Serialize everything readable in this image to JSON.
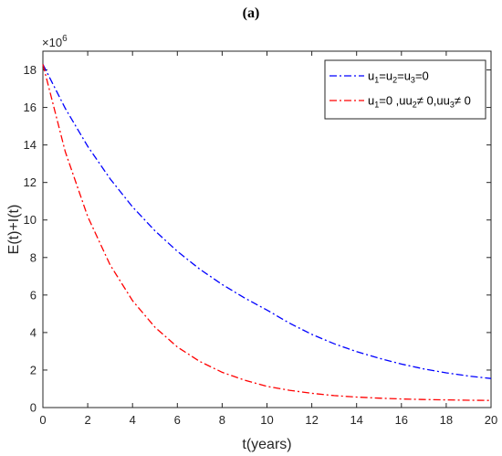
{
  "panel_label": "(a)",
  "chart_data": {
    "type": "line",
    "xlabel": "t(years)",
    "ylabel": "E(t)+I(t)",
    "y_multiplier_label": "×10",
    "y_multiplier_exponent": "6",
    "xlim": [
      0,
      20
    ],
    "ylim": [
      0,
      19
    ],
    "x_ticks": [
      0,
      2,
      4,
      6,
      8,
      10,
      12,
      14,
      16,
      18,
      20
    ],
    "y_ticks": [
      0,
      2,
      4,
      6,
      8,
      10,
      12,
      14,
      16,
      18
    ],
    "grid": false,
    "legend_position": "top-right",
    "x": [
      0,
      1,
      2,
      3,
      4,
      5,
      6,
      7,
      8,
      9,
      10,
      11,
      12,
      13,
      14,
      15,
      16,
      17,
      18,
      19,
      20
    ],
    "series": [
      {
        "legend": {
          "base": "u",
          "parts": [
            [
              "1",
              "="
            ],
            [
              "2",
              "="
            ],
            [
              "3",
              "=0"
            ]
          ]
        },
        "color": "#0000ff",
        "values": [
          18.3,
          15.95,
          13.93,
          12.2,
          10.7,
          9.42,
          8.33,
          7.38,
          6.56,
          5.84,
          5.2,
          4.5,
          3.9,
          3.4,
          2.98,
          2.63,
          2.32,
          2.06,
          1.85,
          1.68,
          1.55
        ]
      },
      {
        "legend": {
          "base": "u",
          "parts": [
            [
              "1",
              "=0 ,u"
            ],
            [
              "2",
              "≠ 0,u"
            ],
            [
              "3",
              "≠ 0"
            ]
          ]
        },
        "color": "#ff0000",
        "values": [
          18.3,
          13.64,
          10.18,
          7.61,
          5.7,
          4.28,
          3.23,
          2.46,
          1.88,
          1.46,
          1.13,
          0.92,
          0.76,
          0.64,
          0.56,
          0.5,
          0.46,
          0.43,
          0.41,
          0.39,
          0.38
        ]
      }
    ]
  }
}
